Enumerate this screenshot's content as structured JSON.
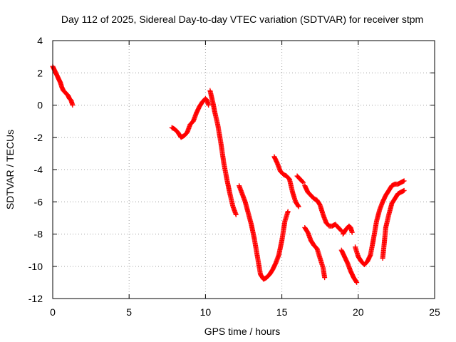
{
  "chart_data": {
    "type": "scatter",
    "title": "Day 112 of 2025, Sidereal Day-to-day VTEC variation (SDTVAR) for receiver stpm",
    "xlabel": "GPS time / hours",
    "ylabel": "SDTVAR / TECUs",
    "xlim": [
      0,
      25
    ],
    "ylim": [
      -12,
      4
    ],
    "xticks": [
      0,
      5,
      10,
      15,
      20,
      25
    ],
    "yticks": [
      4,
      2,
      0,
      -2,
      -4,
      -6,
      -8,
      -10,
      -12
    ],
    "grid": true,
    "marker": "+",
    "color": "#ff0000",
    "series": [
      {
        "name": "SDTVAR",
        "segments": [
          {
            "x": [
              0.0,
              0.1,
              0.2,
              0.3,
              0.4,
              0.5,
              0.6,
              0.7,
              0.8,
              0.9,
              1.0,
              1.1,
              1.2,
              1.3
            ],
            "y": [
              2.4,
              2.2,
              2.0,
              1.8,
              1.6,
              1.4,
              1.1,
              0.9,
              0.8,
              0.7,
              0.6,
              0.4,
              0.3,
              0.0
            ]
          },
          {
            "x": [
              7.8,
              8.0,
              8.2,
              8.4,
              8.6,
              8.8,
              9.0,
              9.2,
              9.4,
              9.6,
              9.8,
              10.0,
              10.1,
              10.2
            ],
            "y": [
              -1.4,
              -1.5,
              -1.7,
              -2.0,
              -1.9,
              -1.7,
              -1.2,
              -1.0,
              -0.5,
              -0.1,
              0.2,
              0.4,
              0.3,
              0.0
            ]
          },
          {
            "x": [
              10.3,
              10.4,
              10.5,
              10.6,
              10.8,
              11.0,
              11.2,
              11.4,
              11.6,
              11.8,
              12.0
            ],
            "y": [
              0.9,
              0.5,
              0.1,
              -0.4,
              -1.2,
              -2.3,
              -3.6,
              -4.6,
              -5.5,
              -6.3,
              -6.8
            ]
          },
          {
            "x": [
              12.2,
              12.4,
              12.6,
              12.8,
              13.0,
              13.2,
              13.4,
              13.6,
              13.8,
              14.0,
              14.2,
              14.4,
              14.6,
              14.8,
              15.0,
              15.2,
              15.4
            ],
            "y": [
              -5.0,
              -5.5,
              -6.0,
              -6.7,
              -7.4,
              -8.3,
              -9.4,
              -10.5,
              -10.8,
              -10.7,
              -10.5,
              -10.2,
              -9.8,
              -9.3,
              -8.4,
              -7.2,
              -6.6
            ]
          },
          {
            "x": [
              14.5,
              14.7,
              14.9,
              15.1,
              15.3,
              15.5,
              15.7,
              15.9,
              16.1
            ],
            "y": [
              -3.2,
              -3.6,
              -4.1,
              -4.3,
              -4.4,
              -4.6,
              -5.4,
              -6.0,
              -6.3
            ]
          },
          {
            "x": [
              16.0,
              16.2,
              16.4
            ],
            "y": [
              -4.4,
              -4.6,
              -4.8
            ]
          },
          {
            "x": [
              16.5,
              16.7,
              16.9,
              17.1,
              17.3,
              17.5,
              17.7,
              17.9,
              18.1,
              18.3,
              18.5,
              18.7,
              18.9
            ],
            "y": [
              -5.0,
              -5.4,
              -5.6,
              -5.8,
              -5.9,
              -6.2,
              -6.8,
              -7.3,
              -7.5,
              -7.5,
              -7.4,
              -7.6,
              -7.8
            ]
          },
          {
            "x": [
              16.5,
              16.7,
              16.9,
              17.1,
              17.3,
              17.5,
              17.7,
              17.8
            ],
            "y": [
              -7.6,
              -7.9,
              -8.4,
              -8.7,
              -8.9,
              -9.5,
              -10.1,
              -10.7
            ]
          },
          {
            "x": [
              19.0,
              19.2,
              19.4,
              19.5,
              19.6
            ],
            "y": [
              -8.0,
              -7.7,
              -7.5,
              -7.6,
              -7.9
            ]
          },
          {
            "x": [
              18.9,
              19.1,
              19.3,
              19.5,
              19.7,
              19.9
            ],
            "y": [
              -9.0,
              -9.4,
              -9.8,
              -10.3,
              -10.7,
              -11.0
            ]
          },
          {
            "x": [
              19.8,
              20.0,
              20.2,
              20.4,
              20.6,
              20.8,
              21.0,
              21.2,
              21.4,
              21.6,
              21.8,
              22.0,
              22.2,
              22.4,
              22.6,
              22.8,
              23.0
            ],
            "y": [
              -8.8,
              -9.4,
              -9.7,
              -9.9,
              -9.7,
              -9.3,
              -8.3,
              -7.2,
              -6.5,
              -6.0,
              -5.6,
              -5.3,
              -5.0,
              -4.9,
              -4.9,
              -4.8,
              -4.7
            ]
          },
          {
            "x": [
              21.6,
              21.7,
              21.8,
              22.0,
              22.2,
              22.4,
              22.6,
              22.8,
              23.0
            ],
            "y": [
              -9.5,
              -8.6,
              -7.6,
              -6.8,
              -6.1,
              -5.8,
              -5.5,
              -5.4,
              -5.3
            ]
          }
        ]
      }
    ]
  }
}
